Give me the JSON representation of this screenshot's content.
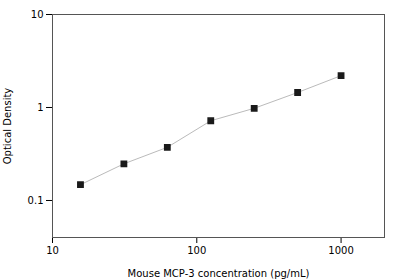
{
  "chart_data": {
    "type": "line",
    "x": [
      15.625,
      31.25,
      62.5,
      125,
      250,
      500,
      1000
    ],
    "values": [
      0.148,
      0.248,
      0.373,
      0.72,
      0.98,
      1.45,
      2.2
    ],
    "xlabel": "Mouse MCP-3 concentration (pg/mL)",
    "ylabel": "Optical Density",
    "xlim": [
      10,
      2000
    ],
    "ylim": [
      0.04,
      10
    ],
    "xticks": [
      10,
      100,
      1000
    ],
    "yticks": [
      0.1,
      1,
      10
    ],
    "log": true,
    "grid": false,
    "color": "#1a1a1a",
    "marker": "square",
    "line_style": "solid"
  }
}
